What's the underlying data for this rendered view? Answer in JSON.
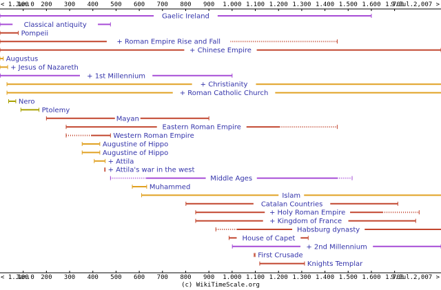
{
  "axis": {
    "start_label": "1.Jan.0",
    "end_label": "9.Jul.2,007",
    "ticks": [
      "100",
      "200",
      "300",
      "400",
      "500",
      "600",
      "700",
      "800",
      "900",
      "1.000",
      "1.100",
      "1.200",
      "1.300",
      "1.400",
      "1.500",
      "1.600",
      "1.700"
    ],
    "xlim": [
      0,
      1900
    ]
  },
  "credit": "(c) WikiTimeScale.org",
  "colors": {
    "purple": "#a64bd6",
    "brown": "#c1442c",
    "orange": "#e0a020",
    "olive": "#a8a000",
    "label": "#3333aa"
  },
  "chart_data": {
    "type": "timeline",
    "unit": "year",
    "entries": [
      {
        "label": "Gaelic Ireland",
        "start": 0,
        "end": 1600,
        "color": "purple"
      },
      {
        "label": "Classical antiquity",
        "start": 0,
        "end": 476,
        "color": "purple"
      },
      {
        "label": "Pompeii",
        "start": 0,
        "end": 79,
        "color": "brown"
      },
      {
        "label": "+ Roman Empire Rise and Fall",
        "start": 0,
        "end": 1453,
        "dotted_from": 476,
        "color": "brown"
      },
      {
        "label": "+ Chinese Empire",
        "start": 0,
        "end": 1912,
        "color": "brown"
      },
      {
        "label": "Augustus",
        "start": 0,
        "end": 14,
        "color": "orange"
      },
      {
        "label": "+ Jesus of Nazareth",
        "start": 0,
        "end": 33,
        "color": "orange"
      },
      {
        "label": "+ 1st Millennium",
        "start": 1,
        "end": 1000,
        "color": "purple"
      },
      {
        "label": "+ Christianity",
        "start": 30,
        "end": 2007,
        "color": "orange"
      },
      {
        "label": "+ Roman Catholic Church",
        "start": 30,
        "end": 2007,
        "color": "orange"
      },
      {
        "label": "Nero",
        "start": 37,
        "end": 68,
        "color": "olive"
      },
      {
        "label": "Ptolemy",
        "start": 90,
        "end": 168,
        "color": "olive"
      },
      {
        "label": "Mayan",
        "start": 200,
        "end": 900,
        "color": "brown"
      },
      {
        "label": "Eastern Roman Empire",
        "start": 285,
        "end": 1453,
        "dotted_from": 1204,
        "color": "brown"
      },
      {
        "label": "Western Roman Empire",
        "start": 285,
        "end": 476,
        "dotted_until": 395,
        "color": "brown"
      },
      {
        "label": "Augustine of Hippo",
        "start": 354,
        "end": 430,
        "color": "orange"
      },
      {
        "label": "Augustine of Hippo",
        "start": 354,
        "end": 430,
        "color": "orange"
      },
      {
        "label": "+ Attila",
        "start": 406,
        "end": 453,
        "color": "orange"
      },
      {
        "label": "+ Attila's war in the west",
        "start": 451,
        "end": 453,
        "color": "brown"
      },
      {
        "label": "Middle Ages",
        "start": 476,
        "end": 1517,
        "dotted_until": 630,
        "dotted_from": 1453,
        "color": "purple"
      },
      {
        "label": "Muhammed",
        "start": 570,
        "end": 632,
        "color": "orange"
      },
      {
        "label": "Islam",
        "start": 610,
        "end": 2007,
        "color": "orange"
      },
      {
        "label": "Catalan Countries",
        "start": 801,
        "end": 1714,
        "color": "brown"
      },
      {
        "label": "+ Holy Roman Empire",
        "start": 843,
        "end": 1806,
        "dotted_from": 1648,
        "color": "brown"
      },
      {
        "label": "+ Kingdom of France",
        "start": 843,
        "end": 1791,
        "color": "brown"
      },
      {
        "label": "Habsburg dynasty",
        "start": 930,
        "end": 2007,
        "dotted_until": 1020,
        "color": "brown"
      },
      {
        "label": "House of Capet",
        "start": 987,
        "end": 1328,
        "color": "brown"
      },
      {
        "label": "+ 2nd Millennium",
        "start": 1001,
        "end": 2000,
        "color": "purple"
      },
      {
        "label": "First Crusade",
        "start": 1095,
        "end": 1099,
        "color": "brown"
      },
      {
        "label": "Knights Templar",
        "start": 1119,
        "end": 1312,
        "color": "brown"
      }
    ]
  }
}
